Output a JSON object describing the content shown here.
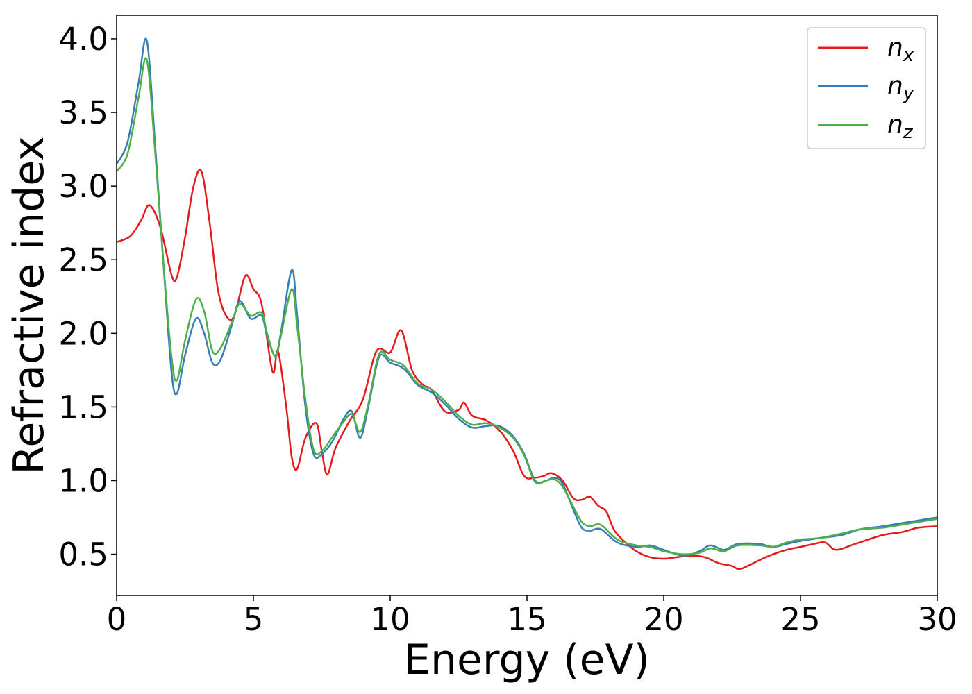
{
  "chart_data": {
    "type": "line",
    "title": "",
    "xlabel": "Energy (eV)",
    "ylabel": "Refractive index",
    "xlim": [
      0,
      30
    ],
    "ylim": [
      0.22,
      4.16
    ],
    "xticks": [
      0,
      5,
      10,
      15,
      20,
      25,
      30
    ],
    "xtick_labels": [
      "0",
      "5",
      "10",
      "15",
      "20",
      "25",
      "30"
    ],
    "yticks": [
      0.5,
      1.0,
      1.5,
      2.0,
      2.5,
      3.0,
      3.5,
      4.0
    ],
    "ytick_labels": [
      "0.5",
      "1.0",
      "1.5",
      "2.0",
      "2.5",
      "3.0",
      "3.5",
      "4.0"
    ],
    "grid": false,
    "legend_position": "top-right",
    "series": [
      {
        "name": "n_x",
        "legend_base": "n",
        "legend_sub": "x",
        "color": "#e41a1c",
        "x": [
          0,
          0.5,
          0.9,
          1.2,
          1.6,
          2.0,
          2.2,
          2.5,
          2.8,
          3.1,
          3.4,
          3.7,
          4.0,
          4.3,
          4.7,
          5.0,
          5.3,
          5.7,
          5.9,
          6.2,
          6.4,
          6.6,
          6.9,
          7.3,
          7.5,
          7.7,
          8.0,
          8.5,
          9.0,
          9.5,
          10.0,
          10.4,
          10.8,
          11.2,
          11.5,
          12.0,
          12.5,
          12.7,
          13.0,
          13.5,
          14.0,
          14.5,
          14.9,
          15.3,
          15.6,
          15.9,
          16.3,
          16.7,
          17.0,
          17.3,
          17.6,
          17.9,
          18.2,
          18.6,
          19.0,
          19.5,
          20.0,
          20.5,
          21.0,
          21.5,
          22.0,
          22.5,
          22.8,
          23.5,
          24.0,
          24.5,
          25.0,
          25.5,
          25.9,
          26.3,
          27.0,
          28.0,
          28.7,
          29.3,
          30.0
        ],
        "y": [
          2.62,
          2.66,
          2.77,
          2.87,
          2.72,
          2.4,
          2.38,
          2.65,
          2.99,
          3.1,
          2.75,
          2.3,
          2.12,
          2.12,
          2.39,
          2.3,
          2.2,
          1.74,
          1.88,
          1.5,
          1.16,
          1.08,
          1.29,
          1.39,
          1.2,
          1.04,
          1.22,
          1.4,
          1.55,
          1.88,
          1.87,
          2.02,
          1.75,
          1.65,
          1.62,
          1.47,
          1.48,
          1.53,
          1.44,
          1.41,
          1.34,
          1.2,
          1.03,
          1.02,
          1.03,
          1.05,
          1.0,
          0.88,
          0.87,
          0.89,
          0.83,
          0.79,
          0.66,
          0.58,
          0.52,
          0.48,
          0.47,
          0.48,
          0.49,
          0.48,
          0.44,
          0.42,
          0.4,
          0.46,
          0.5,
          0.53,
          0.55,
          0.57,
          0.58,
          0.53,
          0.57,
          0.63,
          0.65,
          0.68,
          0.69
        ]
      },
      {
        "name": "n_y",
        "legend_base": "n",
        "legend_sub": "y",
        "color": "#377eb8",
        "x": [
          0,
          0.4,
          0.8,
          1.1,
          1.4,
          1.7,
          2.0,
          2.2,
          2.5,
          2.9,
          3.2,
          3.5,
          3.8,
          4.2,
          4.5,
          4.9,
          5.3,
          5.5,
          5.8,
          6.0,
          6.4,
          6.6,
          6.9,
          7.2,
          7.5,
          7.9,
          8.3,
          8.6,
          8.9,
          9.2,
          9.6,
          10.0,
          10.5,
          11.0,
          11.5,
          12.0,
          12.5,
          13.0,
          13.5,
          14.0,
          14.5,
          14.9,
          15.3,
          15.7,
          16.0,
          16.3,
          16.7,
          17.0,
          17.3,
          17.7,
          18.3,
          19.0,
          19.5,
          20.0,
          20.7,
          21.3,
          21.7,
          22.2,
          22.7,
          23.5,
          24.0,
          24.5,
          25.0,
          25.7,
          26.5,
          27.2,
          28.0,
          29.0,
          30.0
        ],
        "y": [
          3.15,
          3.3,
          3.7,
          3.99,
          3.3,
          2.5,
          1.75,
          1.59,
          1.85,
          2.1,
          2.0,
          1.8,
          1.82,
          2.05,
          2.22,
          2.1,
          2.12,
          1.98,
          1.85,
          2.0,
          2.43,
          2.12,
          1.5,
          1.18,
          1.18,
          1.27,
          1.42,
          1.47,
          1.29,
          1.5,
          1.84,
          1.8,
          1.76,
          1.65,
          1.6,
          1.52,
          1.42,
          1.36,
          1.37,
          1.37,
          1.3,
          1.18,
          1.0,
          1.0,
          1.02,
          0.98,
          0.8,
          0.68,
          0.66,
          0.67,
          0.58,
          0.55,
          0.56,
          0.53,
          0.49,
          0.52,
          0.56,
          0.53,
          0.57,
          0.57,
          0.55,
          0.57,
          0.59,
          0.61,
          0.63,
          0.67,
          0.69,
          0.72,
          0.75
        ]
      },
      {
        "name": "n_z",
        "legend_base": "n",
        "legend_sub": "z",
        "color": "#4daf4a",
        "x": [
          0,
          0.4,
          0.8,
          1.1,
          1.4,
          1.7,
          2.0,
          2.2,
          2.5,
          2.9,
          3.2,
          3.5,
          3.8,
          4.2,
          4.5,
          4.9,
          5.3,
          5.5,
          5.8,
          6.0,
          6.4,
          6.6,
          6.9,
          7.2,
          7.5,
          7.9,
          8.3,
          8.6,
          8.9,
          9.2,
          9.6,
          10.0,
          10.5,
          11.0,
          11.5,
          12.0,
          12.5,
          13.0,
          13.5,
          14.0,
          14.5,
          14.9,
          15.3,
          15.7,
          16.0,
          16.3,
          16.7,
          17.0,
          17.3,
          17.7,
          18.3,
          19.0,
          19.5,
          20.0,
          20.7,
          21.3,
          21.7,
          22.2,
          22.7,
          23.5,
          24.0,
          24.5,
          25.0,
          25.7,
          26.5,
          27.2,
          28.0,
          29.0,
          30.0
        ],
        "y": [
          3.1,
          3.22,
          3.6,
          3.86,
          3.25,
          2.5,
          1.85,
          1.68,
          1.95,
          2.23,
          2.15,
          1.88,
          1.9,
          2.07,
          2.2,
          2.12,
          2.14,
          2.0,
          1.84,
          1.98,
          2.3,
          2.05,
          1.55,
          1.21,
          1.2,
          1.3,
          1.4,
          1.45,
          1.33,
          1.52,
          1.86,
          1.82,
          1.78,
          1.66,
          1.62,
          1.54,
          1.44,
          1.38,
          1.39,
          1.36,
          1.29,
          1.17,
          0.99,
          1.0,
          1.01,
          0.96,
          0.82,
          0.72,
          0.69,
          0.7,
          0.6,
          0.56,
          0.55,
          0.52,
          0.5,
          0.51,
          0.54,
          0.52,
          0.56,
          0.56,
          0.55,
          0.58,
          0.6,
          0.61,
          0.64,
          0.67,
          0.68,
          0.71,
          0.74
        ]
      }
    ]
  }
}
